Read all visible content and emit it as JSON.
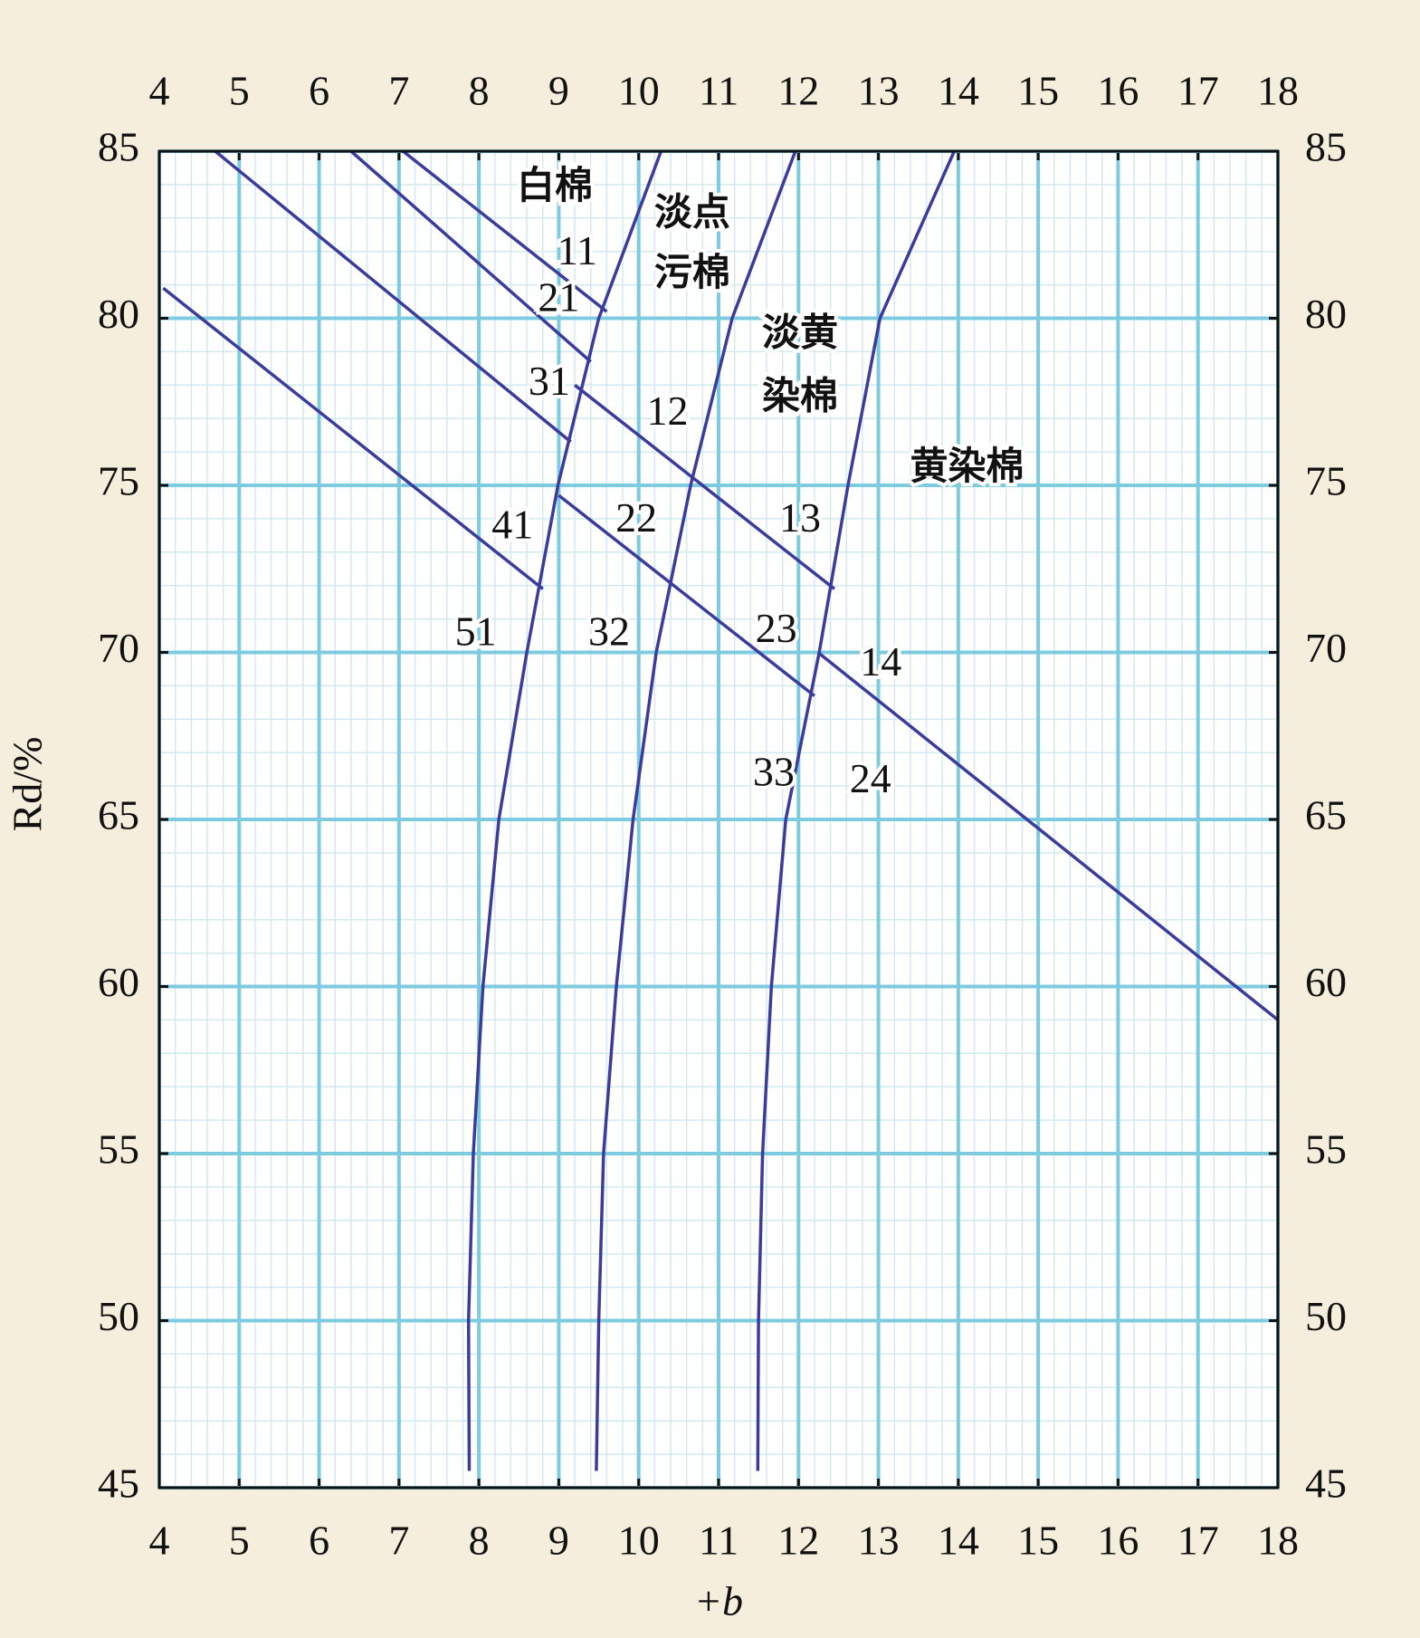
{
  "chart_data": {
    "type": "line",
    "x_label": "+b",
    "y_label": "Rd/%",
    "xlim": [
      4,
      18
    ],
    "ylim": [
      45,
      85
    ],
    "xticks": [
      4,
      5,
      6,
      7,
      8,
      9,
      10,
      11,
      12,
      13,
      14,
      15,
      16,
      17,
      18
    ],
    "yticks": [
      45,
      50,
      55,
      60,
      65,
      70,
      75,
      80,
      85
    ],
    "grid": true,
    "series": [
      {
        "color": "#3b3b9c",
        "x": [
          7.88,
          7.87,
          7.93,
          8.05,
          8.25,
          8.6,
          8.99,
          9.5,
          10.28
        ],
        "values": [
          45.5,
          50,
          55,
          60,
          65,
          70,
          75,
          80,
          85
        ]
      },
      {
        "color": "#3b3b9c",
        "x": [
          9.47,
          9.5,
          9.56,
          9.72,
          9.93,
          10.22,
          10.65,
          11.17,
          11.96
        ],
        "values": [
          45.5,
          50,
          55,
          60,
          65,
          70,
          75,
          80,
          85
        ]
      },
      {
        "color": "#3b3b9c",
        "x": [
          11.49,
          11.5,
          11.55,
          11.66,
          11.84,
          12.26,
          12.62,
          13.02,
          13.95
        ],
        "values": [
          45.5,
          50,
          55,
          60,
          65,
          70,
          75,
          80,
          85
        ]
      },
      {
        "color": "#3b3b9c",
        "x": [
          7.05,
          9.6
        ],
        "values": [
          85,
          80.2
        ]
      },
      {
        "color": "#3b3b9c",
        "x": [
          6.4,
          9.4
        ],
        "values": [
          85,
          78.7
        ]
      },
      {
        "color": "#3b3b9c",
        "x": [
          4.7,
          9.15
        ],
        "values": [
          85,
          76.3
        ]
      },
      {
        "color": "#3b3b9c",
        "x": [
          9.2,
          12.45
        ],
        "values": [
          78.0,
          71.9
        ]
      },
      {
        "color": "#3b3b9c",
        "x": [
          4.05,
          8.8
        ],
        "values": [
          80.9,
          71.9
        ]
      },
      {
        "color": "#3b3b9c",
        "x": [
          9.0,
          12.2
        ],
        "values": [
          74.7,
          68.7
        ]
      },
      {
        "color": "#3b3b9c",
        "x": [
          12.26,
          18
        ],
        "values": [
          69.97,
          59.0
        ]
      }
    ],
    "annotations": [
      "白棉",
      "淡点",
      "污棉",
      "淡黄",
      "染棉",
      "黄染棉",
      "11",
      "21",
      "31",
      "12",
      "41",
      "22",
      "13",
      "51",
      "32",
      "23",
      "14",
      "33",
      "24"
    ]
  }
}
